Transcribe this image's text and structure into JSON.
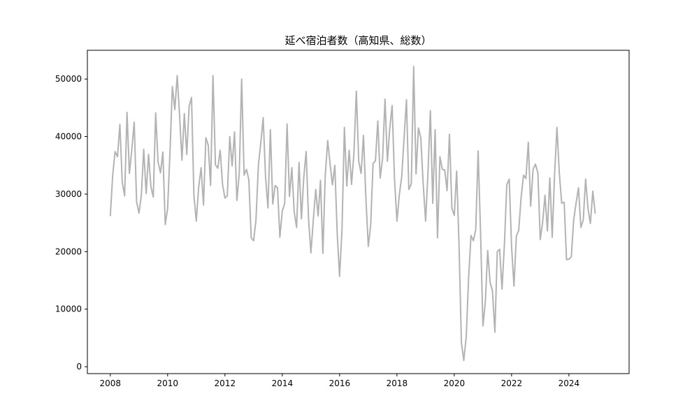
{
  "chart_data": {
    "type": "line",
    "title": "延べ宿泊者数（高知県、総数）",
    "xlabel": "",
    "ylabel": "",
    "xlim": [
      2007.2,
      2026.1
    ],
    "ylim": [
      -1200,
      55000
    ],
    "x_ticks": [
      2008,
      2010,
      2012,
      2014,
      2016,
      2018,
      2020,
      2022,
      2024
    ],
    "x_tick_labels": [
      "2008",
      "2010",
      "2012",
      "2014",
      "2016",
      "2018",
      "2020",
      "2022",
      "2024"
    ],
    "y_ticks": [
      0,
      10000,
      20000,
      30000,
      40000,
      50000
    ],
    "y_tick_labels": [
      "0",
      "10000",
      "20000",
      "30000",
      "40000",
      "50000"
    ],
    "grid": false,
    "line_color": "#b3b3b3",
    "series": [
      {
        "start": "2008-01",
        "frequency": "monthly",
        "values": [
          26200,
          33200,
          37400,
          36500,
          42100,
          32100,
          29700,
          44200,
          33600,
          37800,
          42500,
          28700,
          26700,
          29800,
          37800,
          30100,
          36900,
          31300,
          29500,
          44100,
          35600,
          33700,
          37300,
          24700,
          27500,
          37400,
          48700,
          44700,
          50600,
          43700,
          35900,
          44000,
          36900,
          45300,
          46800,
          29800,
          25300,
          31200,
          34600,
          28100,
          39800,
          38500,
          31500,
          50600,
          35100,
          34500,
          37600,
          31700,
          29300,
          29700,
          40000,
          34900,
          40800,
          28900,
          33600,
          50000,
          33300,
          34300,
          32500,
          22400,
          21900,
          25500,
          35100,
          38900,
          43300,
          33000,
          27600,
          41200,
          28300,
          31500,
          31100,
          22500,
          27000,
          28400,
          42200,
          29600,
          34600,
          26900,
          24200,
          35500,
          25700,
          32900,
          37400,
          25700,
          19800,
          25600,
          30800,
          26200,
          32400,
          19700,
          33200,
          39300,
          35300,
          31600,
          35000,
          23200,
          15700,
          23900,
          41600,
          31400,
          37600,
          31700,
          37000,
          47900,
          35700,
          33600,
          40200,
          29400,
          20900,
          24600,
          35300,
          35800,
          42700,
          32800,
          36300,
          46500,
          35700,
          41400,
          45400,
          32600,
          25300,
          29900,
          33000,
          39800,
          46400,
          30800,
          31800,
          52200,
          33500,
          41500,
          39800,
          31800,
          25300,
          33800,
          44500,
          28400,
          41200,
          22400,
          36500,
          34300,
          34200,
          30600,
          40400,
          27500,
          26300,
          34000,
          21200,
          4200,
          1100,
          5200,
          15400,
          22800,
          21900,
          23800,
          37500,
          23300,
          7100,
          11200,
          20200,
          14700,
          13200,
          6000,
          20000,
          20400,
          13500,
          21200,
          31600,
          32600,
          20800,
          14000,
          22700,
          23700,
          29400,
          33300,
          32700,
          39000,
          27900,
          34300,
          35200,
          33700,
          22100,
          25100,
          29800,
          23600,
          32800,
          22500,
          33400,
          41600,
          33600,
          28400,
          28600,
          18600,
          18700,
          19100,
          25500,
          28400,
          31100,
          24200,
          25500,
          32600,
          27500,
          24900,
          30500,
          26600
        ]
      }
    ]
  }
}
